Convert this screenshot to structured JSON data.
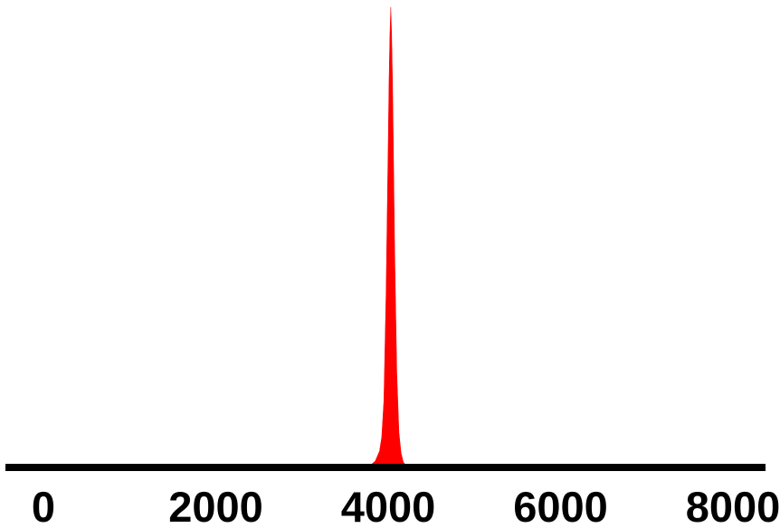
{
  "chart_data": {
    "type": "area",
    "title": "",
    "xlabel": "",
    "ylabel": "",
    "xlim": [
      0,
      8000
    ],
    "ylim": [
      0,
      1
    ],
    "x_ticks": [
      0,
      2000,
      4000,
      6000,
      8000
    ],
    "x_tick_labels": [
      "0",
      "2000",
      "4000",
      "6000",
      "8000"
    ],
    "y_axis_visible": false,
    "grid": false,
    "legend": "none",
    "series": [
      {
        "color": "#ff0000",
        "x": [
          3800,
          3850,
          3900,
          3925,
          3950,
          3975,
          4000,
          4010,
          4020,
          4030,
          4040,
          4050,
          4060,
          4075,
          4100,
          4125,
          4150,
          4175,
          4200
        ],
        "y": [
          0,
          0.008,
          0.03,
          0.06,
          0.14,
          0.37,
          0.7,
          0.84,
          0.94,
          1.0,
          0.94,
          0.84,
          0.7,
          0.47,
          0.2,
          0.07,
          0.025,
          0.006,
          0
        ]
      }
    ],
    "axis_color": "#000000",
    "tick_label_color": "#000000"
  }
}
